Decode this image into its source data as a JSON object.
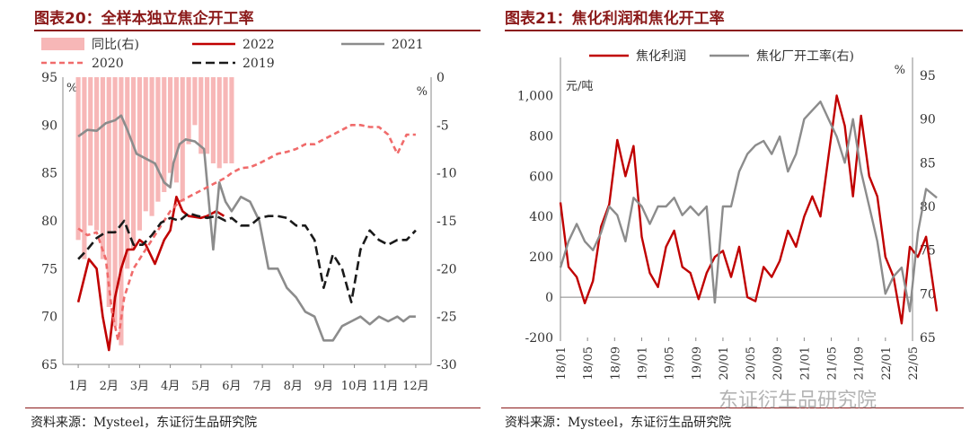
{
  "left": {
    "title": "图表20：全样本独立焦企开工率",
    "source": "资料来源：Mysteel，东证衍生品研究院",
    "left_unit": "%",
    "right_unit": "%",
    "chart_data": {
      "type": "line",
      "categories": [
        "1月",
        "2月",
        "3月",
        "4月",
        "5月",
        "6月",
        "7月",
        "8月",
        "9月",
        "10月",
        "11月",
        "12月"
      ],
      "ylim": [
        65,
        95
      ],
      "yticks": [
        65,
        70,
        75,
        80,
        85,
        90,
        95
      ],
      "y2lim": [
        -30,
        0
      ],
      "y2ticks": [
        -30,
        -25,
        -20,
        -15,
        -10,
        -5,
        0
      ],
      "colors": {
        "同比(右)": "#f7b7b7",
        "2022": "#c00000",
        "2021": "#8c8c8c",
        "2020": "#f06b6b",
        "2019": "#1a1a1a"
      },
      "legend": [
        "同比(右)",
        "2022",
        "2021",
        "2020",
        "2019"
      ],
      "series": [
        {
          "name": "同比(右)",
          "axis": "right",
          "kind": "bar",
          "x": [
            0,
            0.2,
            0.4,
            0.6,
            0.8,
            1.0,
            1.2,
            1.4,
            1.6,
            1.8,
            2.0,
            2.2,
            2.4,
            2.6,
            2.8,
            3.0,
            3.2,
            3.4,
            3.6,
            3.8,
            4.0,
            4.2,
            4.4,
            4.6,
            4.8,
            5.0
          ],
          "values": [
            -17,
            -19,
            -15.5,
            -16,
            -19,
            -24,
            -26,
            -28,
            -20,
            -18,
            -16,
            -14,
            -14.5,
            -13,
            -12,
            -10,
            -11,
            -13,
            -7,
            -5,
            -8,
            -8,
            -9,
            -9.5,
            -9,
            -9
          ]
        },
        {
          "name": "2022",
          "axis": "left",
          "kind": "line",
          "x": [
            0,
            0.35,
            0.6,
            0.8,
            1.0,
            1.2,
            1.4,
            1.6,
            1.8,
            2.0,
            2.2,
            2.5,
            2.8,
            3.0,
            3.2,
            3.4,
            3.6,
            3.8,
            4.0,
            4.2,
            4.5,
            4.75
          ],
          "values": [
            71.5,
            76,
            75,
            70,
            66.5,
            72,
            75,
            77,
            77,
            78,
            77.5,
            75.5,
            78,
            79,
            82.5,
            81,
            80.5,
            80.4,
            80.3,
            80.5,
            81,
            80.5
          ]
        },
        {
          "name": "2021",
          "axis": "left",
          "kind": "line",
          "x": [
            0,
            0.3,
            0.6,
            0.9,
            1.2,
            1.4,
            1.6,
            1.9,
            2.2,
            2.5,
            2.8,
            3.0,
            3.1,
            3.3,
            3.5,
            3.8,
            4.1,
            4.4,
            4.6,
            4.8,
            5.0,
            5.3,
            5.6,
            5.9,
            6.2,
            6.5,
            6.8,
            7.1,
            7.4,
            7.7,
            8.0,
            8.3,
            8.6,
            8.9,
            9.2,
            9.5,
            9.8,
            10.1,
            10.4,
            10.6,
            10.8,
            11.0
          ],
          "values": [
            88.8,
            89.5,
            89.4,
            90.2,
            90.5,
            91,
            89.5,
            87,
            86.5,
            86,
            84,
            83.5,
            86,
            88,
            88.5,
            88.3,
            87.5,
            77,
            84,
            82,
            81,
            82.5,
            82,
            80,
            75,
            75,
            73,
            72,
            70.5,
            70,
            67.5,
            67.5,
            69,
            69.5,
            70,
            69.2,
            70,
            69.5,
            70,
            69.5,
            70,
            70
          ]
        },
        {
          "name": "2020",
          "axis": "left",
          "kind": "line",
          "dash": "6,4",
          "x": [
            0,
            0.3,
            0.6,
            0.9,
            1.1,
            1.3,
            1.5,
            1.8,
            2.1,
            2.4,
            2.7,
            3.0,
            3.3,
            3.6,
            3.9,
            4.2,
            4.5,
            4.8,
            5.0,
            5.3,
            5.6,
            5.9,
            6.2,
            6.5,
            6.8,
            7.1,
            7.4,
            7.7,
            8.0,
            8.3,
            8.6,
            8.9,
            9.2,
            9.5,
            9.8,
            10.1,
            10.4,
            10.7,
            11.0
          ],
          "values": [
            79.2,
            78.5,
            78.8,
            76,
            70.5,
            67.5,
            72,
            75,
            76.5,
            78,
            79.5,
            81,
            82,
            82.5,
            83,
            83.5,
            84,
            84.5,
            85,
            85.5,
            85.6,
            86,
            86.5,
            87,
            87.2,
            87.5,
            88,
            88,
            88.5,
            89,
            89.5,
            90,
            90,
            89.8,
            89.8,
            89,
            87,
            89,
            89
          ]
        },
        {
          "name": "2019",
          "axis": "left",
          "kind": "line",
          "dash": "10,5",
          "x": [
            0,
            0.3,
            0.6,
            0.9,
            1.2,
            1.5,
            1.8,
            2.1,
            2.4,
            2.7,
            3.0,
            3.3,
            3.6,
            3.9,
            4.2,
            4.5,
            4.8,
            5.0,
            5.3,
            5.6,
            5.9,
            6.2,
            6.5,
            6.8,
            7.1,
            7.4,
            7.7,
            8.0,
            8.3,
            8.6,
            8.9,
            9.2,
            9.5,
            9.8,
            10.1,
            10.4,
            10.7,
            11.0
          ],
          "values": [
            76,
            77,
            78.2,
            78.8,
            78.8,
            80,
            77.5,
            77.5,
            78.5,
            79.8,
            80.3,
            80,
            80.8,
            80.5,
            80.3,
            80.5,
            80,
            80.3,
            79.5,
            79.5,
            80.3,
            80.5,
            80.5,
            80.3,
            79.5,
            79.5,
            78,
            73,
            76.5,
            75,
            71.5,
            77,
            79,
            78,
            77.5,
            78,
            78,
            79
          ]
        }
      ]
    }
  },
  "right": {
    "title": "图表21：焦化利润和焦化开工率",
    "source": "资料来源：Mysteel，东证衍生品研究院",
    "left_unit": "元/吨",
    "right_unit": "%",
    "watermark": "东证衍生品研究院",
    "chart_data": {
      "type": "line",
      "categories": [
        "18/01",
        "18/05",
        "18/09",
        "19/01",
        "19/05",
        "19/09",
        "20/01",
        "20/05",
        "20/09",
        "21/01",
        "21/05",
        "21/09",
        "22/01",
        "22/05"
      ],
      "ylim": [
        -200,
        1100
      ],
      "yticks": [
        -200,
        0,
        200,
        400,
        600,
        800,
        "1,000"
      ],
      "y2lim": [
        65,
        95
      ],
      "y2ticks": [
        65,
        70,
        75,
        80,
        85,
        90,
        95
      ],
      "colors": {
        "焦化利润": "#c00000",
        "焦化厂开工率(右)": "#8c8c8c"
      },
      "legend": [
        "焦化利润",
        "焦化厂开工率(右)"
      ],
      "series": [
        {
          "name": "焦化利润",
          "axis": "left",
          "x": [
            0,
            0.3,
            0.6,
            0.9,
            1.2,
            1.5,
            1.8,
            2.1,
            2.4,
            2.7,
            3.0,
            3.3,
            3.6,
            3.9,
            4.2,
            4.5,
            4.8,
            5.1,
            5.4,
            5.7,
            6.0,
            6.3,
            6.6,
            6.9,
            7.2,
            7.5,
            7.8,
            8.1,
            8.4,
            8.7,
            9.0,
            9.3,
            9.6,
            9.9,
            10.2,
            10.5,
            10.8,
            11.1,
            11.4,
            11.7,
            12.0,
            12.3,
            12.6,
            12.9,
            13.2,
            13.5,
            13.9
          ],
          "values": [
            470,
            150,
            100,
            -30,
            80,
            350,
            460,
            780,
            600,
            750,
            300,
            120,
            50,
            250,
            330,
            150,
            120,
            -10,
            120,
            200,
            230,
            100,
            250,
            0,
            -20,
            150,
            100,
            180,
            330,
            250,
            400,
            500,
            400,
            700,
            1000,
            850,
            500,
            900,
            600,
            500,
            200,
            100,
            -130,
            250,
            200,
            300,
            -70
          ]
        },
        {
          "name": "焦化厂开工率(右)",
          "axis": "right",
          "x": [
            0,
            0.3,
            0.6,
            0.9,
            1.2,
            1.5,
            1.8,
            2.1,
            2.4,
            2.7,
            3.0,
            3.3,
            3.6,
            3.9,
            4.2,
            4.5,
            4.8,
            5.1,
            5.4,
            5.7,
            6.0,
            6.3,
            6.6,
            6.9,
            7.2,
            7.5,
            7.8,
            8.1,
            8.4,
            8.7,
            9.0,
            9.3,
            9.6,
            9.9,
            10.2,
            10.5,
            10.8,
            11.1,
            11.4,
            11.7,
            12.0,
            12.3,
            12.6,
            12.9,
            13.2,
            13.5,
            13.9
          ],
          "values": [
            73,
            76,
            78,
            76,
            75,
            77,
            80,
            79,
            76,
            81,
            80,
            78,
            80,
            80,
            81,
            79,
            80,
            79,
            80,
            69,
            80,
            80,
            84,
            86,
            87,
            87.5,
            86,
            88,
            84,
            86,
            90,
            91,
            92,
            90,
            88,
            85,
            90,
            84,
            80,
            76,
            70,
            72,
            73,
            68,
            77,
            82,
            81
          ]
        }
      ]
    }
  }
}
